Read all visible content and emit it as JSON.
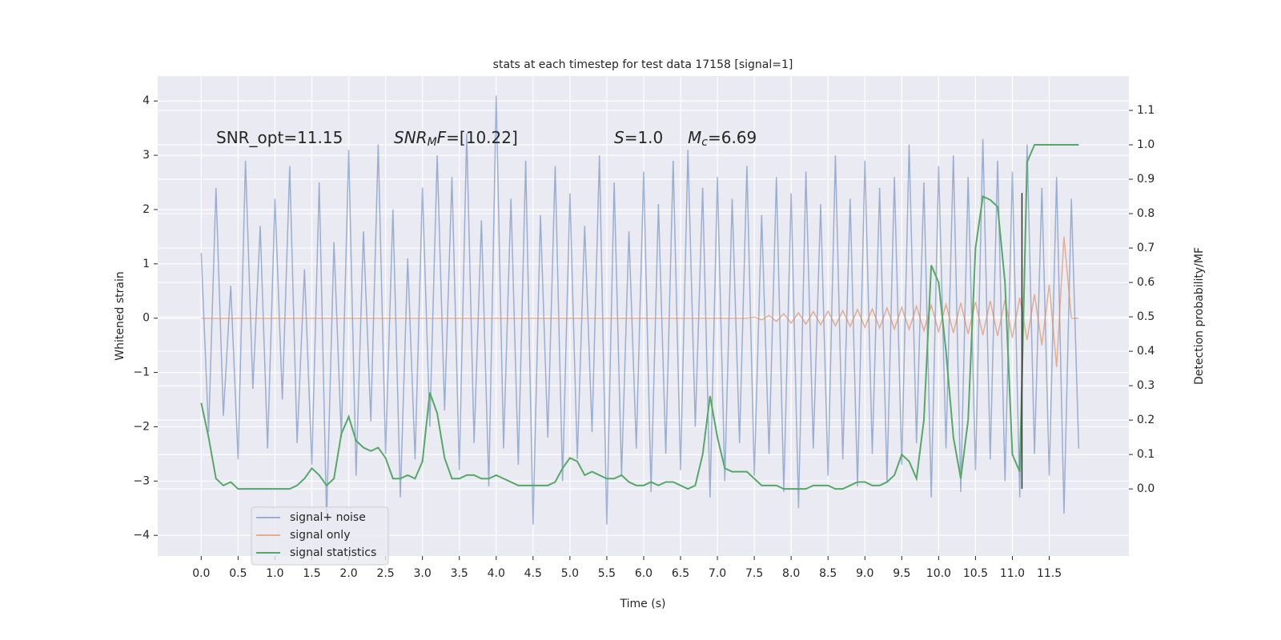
{
  "chart_data": {
    "type": "line",
    "title": "stats at each timestep for test data 17158 [signal=1]",
    "xlabel": "Time (s)",
    "ylabel": "Whitened strain",
    "y2label": "Detection probability/MF",
    "annotations": [
      {
        "parts": [
          {
            "text": "SNR_opt=11.15",
            "style": "normal"
          }
        ]
      },
      {
        "parts": [
          {
            "text": "SNR",
            "style": "italic"
          },
          {
            "text": "M",
            "style": "sub"
          },
          {
            "text": "F",
            "style": "italic"
          },
          {
            "text": "=[10.22]",
            "style": "normal"
          }
        ]
      },
      {
        "parts": [
          {
            "text": "S",
            "style": "italic"
          },
          {
            "text": "=1.0",
            "style": "normal"
          }
        ]
      },
      {
        "parts": [
          {
            "text": "M",
            "style": "italic"
          },
          {
            "text": "c",
            "style": "sub"
          },
          {
            "text": "=6.69",
            "style": "normal"
          }
        ]
      }
    ],
    "x": [
      0.0,
      0.1,
      0.2,
      0.3,
      0.4,
      0.5,
      0.6,
      0.7,
      0.8,
      0.9,
      1.0,
      1.1,
      1.2,
      1.3,
      1.4,
      1.5,
      1.6,
      1.7,
      1.8,
      1.9,
      2.0,
      2.1,
      2.2,
      2.3,
      2.4,
      2.5,
      2.6,
      2.7,
      2.8,
      2.9,
      3.0,
      3.1,
      3.2,
      3.3,
      3.4,
      3.5,
      3.6,
      3.7,
      3.8,
      3.9,
      4.0,
      4.1,
      4.2,
      4.3,
      4.4,
      4.5,
      4.6,
      4.7,
      4.8,
      4.9,
      5.0,
      5.1,
      5.2,
      5.3,
      5.4,
      5.5,
      5.6,
      5.7,
      5.8,
      5.9,
      6.0,
      6.1,
      6.2,
      6.3,
      6.4,
      6.5,
      6.6,
      6.7,
      6.8,
      6.9,
      7.0,
      7.1,
      7.2,
      7.3,
      7.4,
      7.5,
      7.6,
      7.7,
      7.8,
      7.9,
      8.0,
      8.1,
      8.2,
      8.3,
      8.4,
      8.5,
      8.6,
      8.7,
      8.8,
      8.9,
      9.0,
      9.1,
      9.2,
      9.3,
      9.4,
      9.5,
      9.6,
      9.7,
      9.8,
      9.9,
      10.0,
      10.1,
      10.2,
      10.3,
      10.4,
      10.5,
      10.6,
      10.7,
      10.8,
      10.9,
      11.0,
      11.1,
      11.2,
      11.3,
      11.4,
      11.5,
      11.6,
      11.7,
      11.8,
      11.9
    ],
    "series": [
      {
        "name": "signal+ noise",
        "color": "#4c72b0",
        "opacity": 0.5,
        "axis": "y",
        "values": [
          1.2,
          -2.1,
          2.4,
          -1.8,
          0.6,
          -2.6,
          2.9,
          -1.3,
          1.7,
          -2.4,
          2.2,
          -1.5,
          2.8,
          -2.3,
          0.9,
          -2.7,
          2.5,
          -3.7,
          1.4,
          -2.2,
          3.1,
          -2.9,
          1.6,
          -1.9,
          3.2,
          -2.5,
          2.0,
          -3.3,
          1.1,
          -2.6,
          2.4,
          -2.0,
          3.0,
          -1.7,
          2.6,
          -2.8,
          3.4,
          -2.3,
          1.8,
          -3.1,
          4.1,
          -2.4,
          2.2,
          -2.7,
          2.9,
          -3.8,
          1.9,
          -2.2,
          2.8,
          -3.0,
          2.3,
          -2.6,
          1.7,
          -2.1,
          3.0,
          -3.8,
          2.5,
          -2.9,
          1.6,
          -2.4,
          2.7,
          -3.2,
          2.1,
          -2.5,
          2.9,
          -2.8,
          3.1,
          -2.0,
          2.4,
          -3.3,
          2.6,
          -3.0,
          2.2,
          -2.3,
          2.8,
          -2.9,
          1.9,
          -2.5,
          2.6,
          -3.2,
          2.3,
          -3.5,
          2.7,
          -2.4,
          2.1,
          -2.9,
          3.0,
          -2.6,
          2.2,
          -3.1,
          2.9,
          -2.5,
          2.4,
          -3.0,
          2.6,
          -2.7,
          3.2,
          -2.3,
          2.5,
          -3.3,
          2.8,
          -2.4,
          3.0,
          -3.2,
          2.6,
          -2.8,
          3.3,
          -2.6,
          2.9,
          -3.0,
          2.7,
          -3.3,
          3.2,
          -2.5,
          2.4,
          -2.9,
          2.6,
          -3.6,
          2.2,
          -2.4
        ]
      },
      {
        "name": "signal only",
        "color": "#dd8452",
        "opacity": 0.6,
        "axis": "y",
        "values": [
          0,
          0,
          0,
          0,
          0,
          0,
          0,
          0,
          0,
          0,
          0,
          0,
          0,
          0,
          0,
          0,
          0,
          0,
          0,
          0,
          0,
          0,
          0,
          0,
          0,
          0,
          0,
          0,
          0,
          0,
          0,
          0,
          0,
          0,
          0,
          0,
          0,
          0,
          0,
          0,
          0,
          0,
          0,
          0,
          0,
          0,
          0,
          0,
          0,
          0,
          0,
          0,
          0,
          0,
          0,
          0,
          0,
          0,
          0,
          0,
          0,
          0,
          0,
          0,
          0,
          0,
          0,
          0,
          0,
          0,
          0,
          0,
          0,
          0,
          0,
          0.02,
          -0.03,
          0.05,
          -0.06,
          0.08,
          -0.09,
          0.1,
          -0.11,
          0.12,
          -0.12,
          0.13,
          -0.14,
          0.14,
          -0.15,
          0.16,
          -0.17,
          0.17,
          -0.18,
          0.19,
          -0.2,
          0.2,
          -0.21,
          0.22,
          -0.23,
          0.24,
          -0.25,
          0.26,
          -0.27,
          0.28,
          -0.29,
          0.3,
          -0.31,
          0.32,
          -0.33,
          0.34,
          -0.36,
          0.38,
          -0.4,
          0.44,
          -0.5,
          0.62,
          -0.9,
          1.5,
          0,
          0
        ]
      },
      {
        "name": "signal statistics",
        "color": "#55a868",
        "opacity": 1,
        "axis": "y2",
        "values": [
          0.25,
          0.15,
          0.03,
          0.01,
          0.02,
          0.0,
          0.0,
          0.0,
          0.0,
          0.0,
          0.0,
          0.0,
          0.0,
          0.01,
          0.03,
          0.06,
          0.04,
          0.01,
          0.03,
          0.16,
          0.21,
          0.14,
          0.12,
          0.11,
          0.12,
          0.09,
          0.03,
          0.03,
          0.04,
          0.03,
          0.08,
          0.28,
          0.22,
          0.09,
          0.03,
          0.03,
          0.04,
          0.04,
          0.03,
          0.03,
          0.04,
          0.03,
          0.02,
          0.01,
          0.01,
          0.01,
          0.01,
          0.01,
          0.02,
          0.06,
          0.09,
          0.08,
          0.04,
          0.05,
          0.04,
          0.03,
          0.03,
          0.04,
          0.02,
          0.01,
          0.01,
          0.02,
          0.01,
          0.02,
          0.02,
          0.01,
          0.0,
          0.01,
          0.1,
          0.27,
          0.15,
          0.06,
          0.05,
          0.05,
          0.05,
          0.03,
          0.01,
          0.01,
          0.01,
          0.0,
          0.0,
          0.0,
          0.0,
          0.01,
          0.01,
          0.01,
          0.0,
          0.0,
          0.01,
          0.02,
          0.02,
          0.01,
          0.01,
          0.02,
          0.04,
          0.1,
          0.08,
          0.03,
          0.2,
          0.65,
          0.6,
          0.4,
          0.15,
          0.03,
          0.2,
          0.7,
          0.85,
          0.84,
          0.82,
          0.6,
          0.1,
          0.05,
          0.95,
          1.0,
          1.0,
          1.0,
          1.0,
          1.0,
          1.0,
          1.0
        ]
      }
    ],
    "vline": {
      "x": 11.13,
      "ymin": 0.0,
      "ymax": 0.86,
      "color": "#333333"
    },
    "xlim": [
      -0.59,
      12.58
    ],
    "ylim": [
      -4.38,
      4.46
    ],
    "y2lim": [
      -0.195,
      1.2
    ],
    "xticks": [
      {
        "value": 0,
        "label": "0.0"
      },
      0.5,
      {
        "value": 1,
        "label": "1.0"
      },
      1.5,
      {
        "value": 2,
        "label": "2.0"
      },
      2.5,
      {
        "value": 3,
        "label": "3.0"
      },
      3.5,
      {
        "value": 4,
        "label": "4.0"
      },
      4.5,
      {
        "value": 5,
        "label": "5.0"
      },
      5.5,
      {
        "value": 6,
        "label": "6.0"
      },
      6.5,
      {
        "value": 7,
        "label": "7.0"
      },
      7.5,
      {
        "value": 8,
        "label": "8.0"
      },
      8.5,
      {
        "value": 9,
        "label": "9.0"
      },
      9.5,
      {
        "value": 10,
        "label": "10.0"
      },
      10.5,
      {
        "value": 11,
        "label": "11.0"
      },
      11.5
    ],
    "yticks": [
      {
        "value": -4,
        "label": "−4"
      },
      {
        "value": -3,
        "label": "−3"
      },
      {
        "value": -2,
        "label": "−2"
      },
      {
        "value": -1,
        "label": "−1"
      },
      0,
      1,
      2,
      3,
      4
    ],
    "y2ticks": [
      {
        "value": 0,
        "label": "0.0"
      },
      0.1,
      0.2,
      0.3,
      0.4,
      0.5,
      0.6,
      0.7,
      0.8,
      0.9,
      {
        "value": 1,
        "label": "1.0"
      },
      1.1
    ],
    "grid": true,
    "legend_loc": "lower left"
  }
}
